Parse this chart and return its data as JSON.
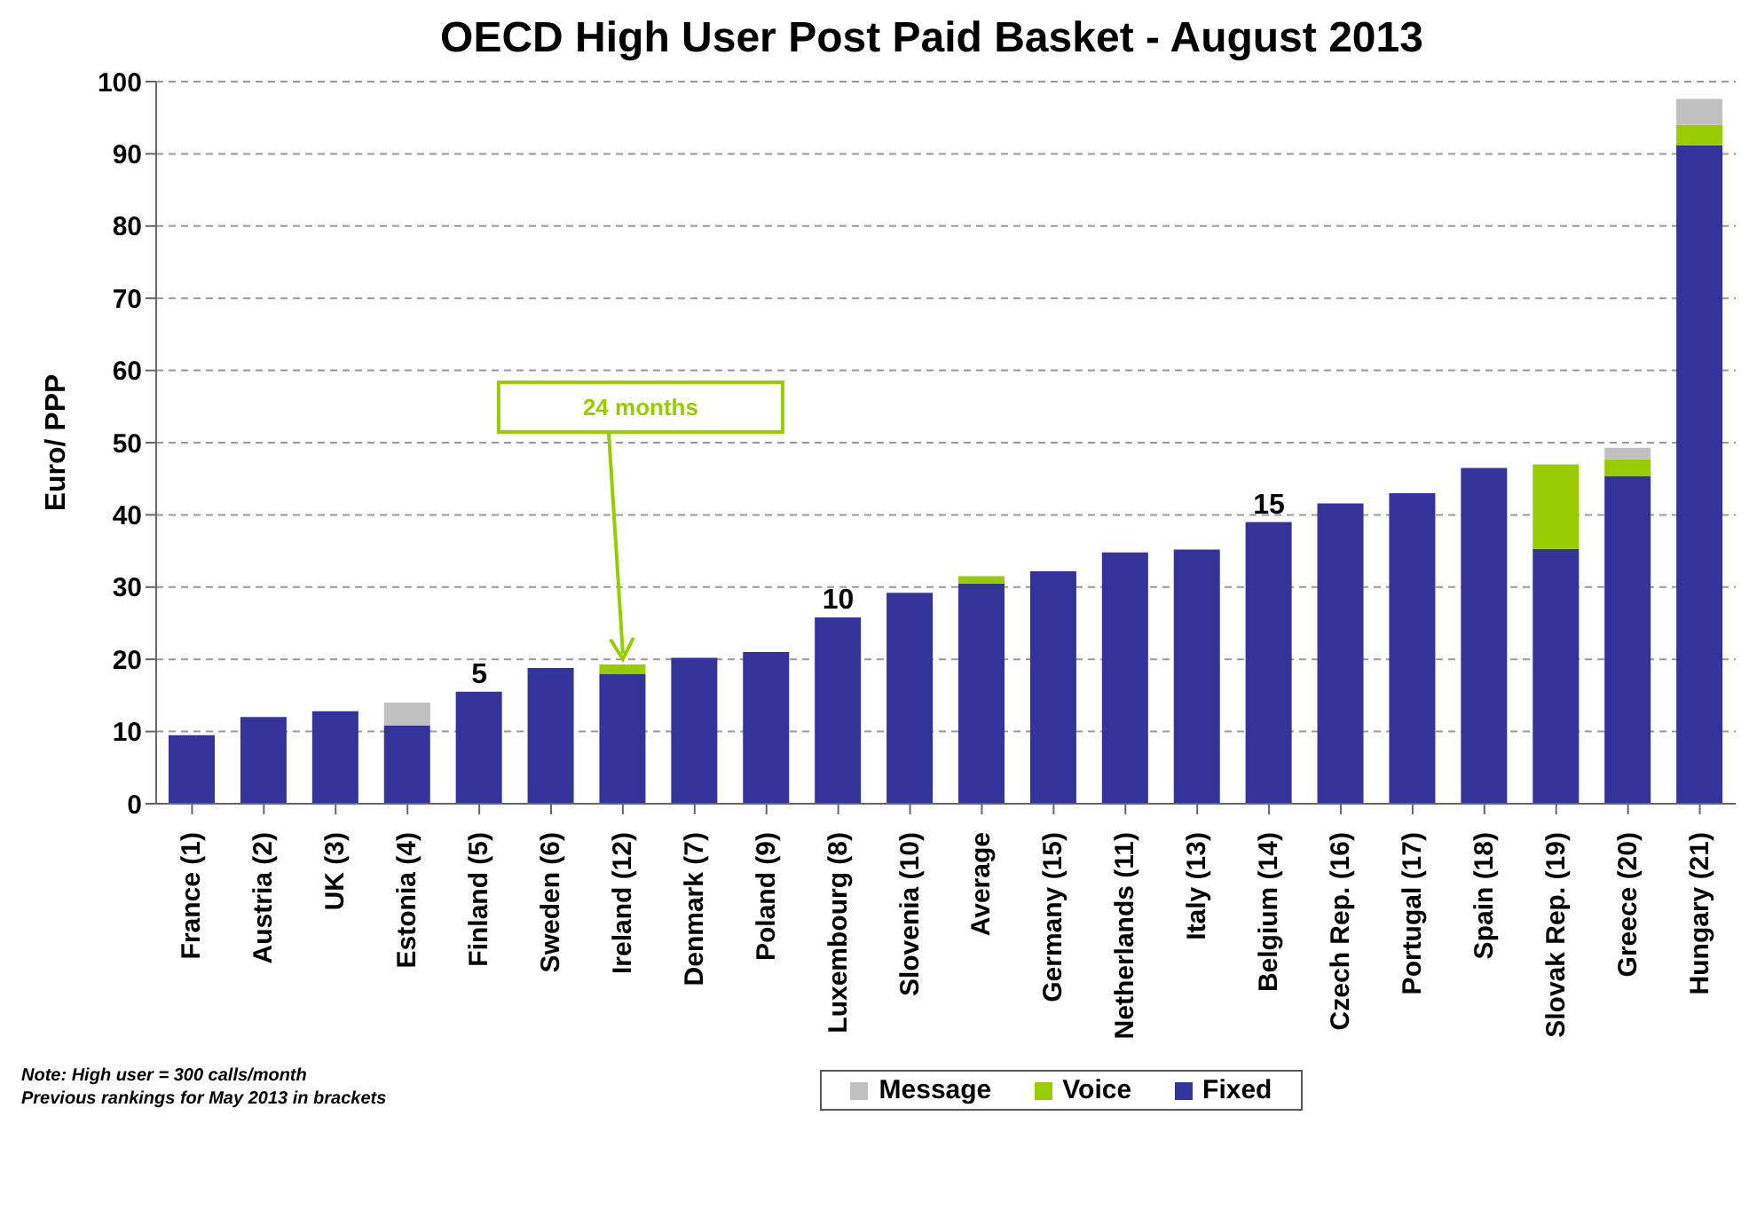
{
  "chart_data": {
    "type": "bar",
    "title": "OECD High User Post Paid Basket - August 2013",
    "ylabel": "Euro/ PPP",
    "categories": [
      "France (1)",
      "Austria (2)",
      "UK (3)",
      "Estonia (4)",
      "Finland (5)",
      "Sweden (6)",
      "Ireland (12)",
      "Denmark (7)",
      "Poland (9)",
      "Luxembourg (8)",
      "Slovenia (10)",
      "Average",
      "Germany (15)",
      "Netherlands (11)",
      "Italy (13)",
      "Belgium (14)",
      "Czech Rep. (16)",
      "Portugal (17)",
      "Spain (18)",
      "Slovak Rep. (19)",
      "Greece (20)",
      "Hungary (21)"
    ],
    "stacked": true,
    "series": [
      {
        "name": "Fixed",
        "color": "#333399",
        "values": [
          9.5,
          12,
          12.8,
          10.8,
          15.5,
          18.8,
          18,
          20.2,
          21,
          25.8,
          29.2,
          30.5,
          32.2,
          34.8,
          35.2,
          39,
          41.6,
          43,
          46.5,
          35.3,
          45.4,
          91.2
        ]
      },
      {
        "name": "Voice",
        "color": "#99cc00",
        "values": [
          null,
          null,
          null,
          null,
          null,
          null,
          1.3,
          null,
          null,
          null,
          null,
          1,
          null,
          null,
          null,
          null,
          null,
          null,
          null,
          11.7,
          2.3,
          2.8
        ]
      },
      {
        "name": "Message",
        "color": "#c0c0c0",
        "values": [
          null,
          null,
          null,
          3.2,
          null,
          null,
          null,
          null,
          null,
          null,
          null,
          null,
          null,
          null,
          null,
          null,
          null,
          null,
          null,
          null,
          1.6,
          3.6
        ]
      }
    ],
    "ylim": [
      0,
      100
    ],
    "yticks": [
      0,
      10,
      20,
      30,
      40,
      50,
      60,
      70,
      80,
      90,
      100
    ],
    "grid": "y",
    "legend": "bottom",
    "annotations": [
      {
        "text": "5",
        "x": "Finland (5)",
        "y": 15.5
      },
      {
        "text": "10",
        "x": "Luxembourg (8)",
        "y": 25.8
      },
      {
        "text": "15",
        "x": "Belgium (14)",
        "y": 39
      },
      {
        "text": "24 months",
        "x": "Ireland (12)",
        "y": 19.3
      },
      "Note: High user = 300 calls/month",
      "Previous rankings for May 2013 in brackets"
    ]
  }
}
